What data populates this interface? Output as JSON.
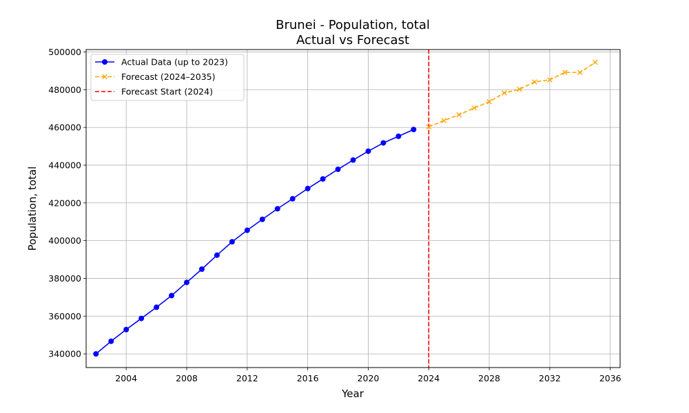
{
  "chart_data": {
    "type": "line",
    "title": "Brunei - Population, total",
    "subtitle": "Actual vs Forecast",
    "xlabel": "Year",
    "ylabel": "Population, total",
    "xlim": [
      2001.35,
      2036.65
    ],
    "ylim": [
      332750,
      501250
    ],
    "xticks": [
      2004,
      2008,
      2012,
      2016,
      2020,
      2024,
      2028,
      2032,
      2036
    ],
    "yticks": [
      340000,
      360000,
      380000,
      400000,
      420000,
      440000,
      460000,
      480000,
      500000
    ],
    "grid": true,
    "legend_position": "top-left",
    "series": [
      {
        "name": "Actual Data (up to 2023)",
        "color": "#0000ff",
        "line_style": "solid",
        "marker": "circle",
        "x": [
          2002,
          2003,
          2004,
          2005,
          2006,
          2007,
          2008,
          2009,
          2010,
          2011,
          2012,
          2013,
          2014,
          2015,
          2016,
          2017,
          2018,
          2019,
          2020,
          2021,
          2022,
          2023
        ],
        "y": [
          340000,
          346700,
          352900,
          358800,
          364700,
          370900,
          377900,
          384900,
          392300,
          399400,
          405500,
          411300,
          416900,
          422200,
          427600,
          432700,
          437800,
          442700,
          447400,
          451800,
          455300,
          458900
        ]
      },
      {
        "name": "Forecast (2024–2035)",
        "color": "#ffa500",
        "line_style": "dashed",
        "marker": "x",
        "x": [
          2024,
          2025,
          2026,
          2027,
          2028,
          2029,
          2030,
          2031,
          2032,
          2033,
          2034,
          2035
        ],
        "y": [
          460300,
          463600,
          466700,
          470300,
          473600,
          478300,
          480200,
          484100,
          485200,
          489200,
          489100,
          494500
        ]
      }
    ],
    "vline": {
      "name": "Forecast Start (2024)",
      "x": 2024,
      "color": "#ff0000",
      "line_style": "dashed"
    }
  }
}
